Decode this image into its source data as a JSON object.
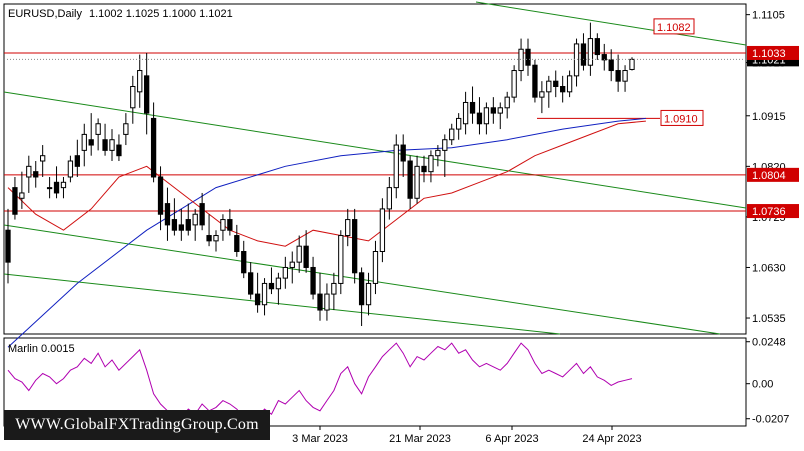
{
  "header": {
    "symbol": "EURUSD,Daily",
    "ohlc": "1.1002 1.1025 1.1000 1.1021"
  },
  "price_axis": {
    "ticks": [
      "1.1105",
      "1.1015",
      "1.0915",
      "1.0820",
      "1.0725",
      "1.0630",
      "1.0535"
    ]
  },
  "indicator": {
    "name": "Marlin 0.0015",
    "ticks": [
      "0.0248",
      "0.00",
      "-0.0207"
    ],
    "color": "#b000b0"
  },
  "date_axis": {
    "labels": [
      "3 Mar 2023",
      "21 Mar 2023",
      "6 Apr 2023",
      "24 Apr 2023"
    ]
  },
  "levels": [
    {
      "value": "1.1082",
      "price": 1.1082,
      "color": "#d00000",
      "style": "text-red"
    },
    {
      "value": "1.1033",
      "price": 1.1033,
      "color": "#d00000",
      "style": "filled"
    },
    {
      "value": "1.0910",
      "price": 1.091,
      "color": "#d00000",
      "style": "text-red"
    },
    {
      "value": "1.0804",
      "price": 1.0804,
      "color": "#d00000",
      "style": "filled"
    },
    {
      "value": "1.0736",
      "price": 1.0736,
      "color": "#d00000",
      "style": "filled"
    }
  ],
  "current_price": {
    "value": "1.1021",
    "price": 1.1021
  },
  "watermark": "WWW.GlobalFXTradingGroup.Com",
  "chart_data": {
    "type": "candlestick",
    "title": "EURUSD,Daily",
    "ylim": [
      1.0505,
      1.1125
    ],
    "indicator_ylim": [
      -0.025,
      0.027
    ],
    "candles": [
      [
        1.07,
        1.074,
        1.06,
        1.064
      ],
      [
        1.078,
        1.08,
        1.072,
        1.073
      ],
      [
        1.076,
        1.081,
        1.074,
        1.077
      ],
      [
        1.08,
        1.084,
        1.077,
        1.082
      ],
      [
        1.081,
        1.083,
        1.078,
        1.08
      ],
      [
        1.083,
        1.086,
        1.08,
        1.084
      ],
      [
        1.078,
        1.08,
        1.076,
        1.078
      ],
      [
        1.079,
        1.082,
        1.076,
        1.077
      ],
      [
        1.078,
        1.08,
        1.076,
        1.079
      ],
      [
        1.08,
        1.084,
        1.079,
        1.083
      ],
      [
        1.084,
        1.087,
        1.08,
        1.082
      ],
      [
        1.085,
        1.09,
        1.082,
        1.088
      ],
      [
        1.087,
        1.092,
        1.084,
        1.086
      ],
      [
        1.088,
        1.091,
        1.085,
        1.09
      ],
      [
        1.087,
        1.09,
        1.084,
        1.085
      ],
      [
        1.085,
        1.089,
        1.083,
        1.087
      ],
      [
        1.086,
        1.088,
        1.083,
        1.084
      ],
      [
        1.088,
        1.092,
        1.086,
        1.09
      ],
      [
        1.093,
        1.099,
        1.09,
        1.097
      ],
      [
        1.096,
        1.103,
        1.093,
        1.1
      ],
      [
        1.099,
        1.1033,
        1.088,
        1.092
      ],
      [
        1.091,
        1.094,
        1.079,
        1.08
      ],
      [
        1.08,
        1.082,
        1.07,
        1.073
      ],
      [
        1.075,
        1.078,
        1.068,
        1.071
      ],
      [
        1.072,
        1.076,
        1.069,
        1.07
      ],
      [
        1.071,
        1.074,
        1.068,
        1.07
      ],
      [
        1.072,
        1.075,
        1.069,
        1.07
      ],
      [
        1.071,
        1.074,
        1.068,
        1.073
      ],
      [
        1.075,
        1.077,
        1.07,
        1.071
      ],
      [
        1.069,
        1.073,
        1.067,
        1.068
      ],
      [
        1.068,
        1.07,
        1.066,
        1.069
      ],
      [
        1.07,
        1.073,
        1.068,
        1.072
      ],
      [
        1.072,
        1.074,
        1.069,
        1.07
      ],
      [
        1.069,
        1.071,
        1.065,
        1.066
      ],
      [
        1.066,
        1.068,
        1.061,
        1.062
      ],
      [
        1.062,
        1.064,
        1.057,
        1.058
      ],
      [
        1.058,
        1.062,
        1.0545,
        1.056
      ],
      [
        1.056,
        1.061,
        1.054,
        1.06
      ],
      [
        1.06,
        1.063,
        1.058,
        1.059
      ],
      [
        1.059,
        1.062,
        1.056,
        1.061
      ],
      [
        1.061,
        1.065,
        1.059,
        1.063
      ],
      [
        1.063,
        1.066,
        1.06,
        1.064
      ],
      [
        1.064,
        1.069,
        1.062,
        1.067
      ],
      [
        1.067,
        1.07,
        1.062,
        1.063
      ],
      [
        1.063,
        1.065,
        1.057,
        1.058
      ],
      [
        1.058,
        1.062,
        1.053,
        1.055
      ],
      [
        1.055,
        1.06,
        1.053,
        1.058
      ],
      [
        1.058,
        1.062,
        1.055,
        1.06
      ],
      [
        1.06,
        1.07,
        1.058,
        1.069
      ],
      [
        1.069,
        1.074,
        1.067,
        1.072
      ],
      [
        1.072,
        1.074,
        1.06,
        1.062
      ],
      [
        1.062,
        1.063,
        1.052,
        1.056
      ],
      [
        1.056,
        1.062,
        1.054,
        1.06
      ],
      [
        1.06,
        1.068,
        1.058,
        1.066
      ],
      [
        1.066,
        1.076,
        1.064,
        1.074
      ],
      [
        1.074,
        1.08,
        1.072,
        1.078
      ],
      [
        1.078,
        1.088,
        1.076,
        1.086
      ],
      [
        1.086,
        1.088,
        1.08,
        1.083
      ],
      [
        1.083,
        1.084,
        1.074,
        1.076
      ],
      [
        1.076,
        1.084,
        1.075,
        1.082
      ],
      [
        1.082,
        1.084,
        1.079,
        1.081
      ],
      [
        1.081,
        1.085,
        1.079,
        1.084
      ],
      [
        1.084,
        1.086,
        1.082,
        1.085
      ],
      [
        1.085,
        1.088,
        1.08,
        1.087
      ],
      [
        1.087,
        1.09,
        1.086,
        1.089
      ],
      [
        1.089,
        1.092,
        1.087,
        1.091
      ],
      [
        1.09,
        1.096,
        1.088,
        1.094
      ],
      [
        1.094,
        1.097,
        1.09,
        1.092
      ],
      [
        1.092,
        1.095,
        1.088,
        1.09
      ],
      [
        1.09,
        1.094,
        1.088,
        1.093
      ],
      [
        1.093,
        1.095,
        1.09,
        1.092
      ],
      [
        1.092,
        1.094,
        1.089,
        1.093
      ],
      [
        1.093,
        1.096,
        1.091,
        1.095
      ],
      [
        1.095,
        1.101,
        1.094,
        1.1
      ],
      [
        1.1,
        1.106,
        1.098,
        1.104
      ],
      [
        1.104,
        1.106,
        1.099,
        1.101
      ],
      [
        1.101,
        1.102,
        1.094,
        1.095
      ],
      [
        1.095,
        1.098,
        1.092,
        1.096
      ],
      [
        1.096,
        1.099,
        1.093,
        1.098
      ],
      [
        1.098,
        1.1,
        1.095,
        1.097
      ],
      [
        1.097,
        1.099,
        1.094,
        1.096
      ],
      [
        1.096,
        1.1,
        1.095,
        1.099
      ],
      [
        1.099,
        1.106,
        1.097,
        1.105
      ],
      [
        1.105,
        1.107,
        1.1,
        1.101
      ],
      [
        1.101,
        1.109,
        1.099,
        1.106
      ],
      [
        1.106,
        1.107,
        1.102,
        1.103
      ],
      [
        1.103,
        1.105,
        1.1,
        1.102
      ],
      [
        1.102,
        1.104,
        1.098,
        1.1
      ],
      [
        1.1,
        1.103,
        1.096,
        1.098
      ],
      [
        1.098,
        1.101,
        1.096,
        1.1
      ],
      [
        1.1002,
        1.1025,
        1.1,
        1.1021
      ]
    ],
    "ma_blue": [
      [
        0,
        1.048
      ],
      [
        10,
        1.06
      ],
      [
        20,
        1.07
      ],
      [
        30,
        1.078
      ],
      [
        40,
        1.082
      ],
      [
        48,
        1.084
      ],
      [
        56,
        1.085
      ],
      [
        64,
        1.0855
      ],
      [
        72,
        1.087
      ],
      [
        80,
        1.089
      ],
      [
        88,
        1.0905
      ],
      [
        92,
        1.091
      ]
    ],
    "ma_red": [
      [
        0,
        1.078
      ],
      [
        4,
        1.073
      ],
      [
        8,
        1.07
      ],
      [
        12,
        1.074
      ],
      [
        16,
        1.08
      ],
      [
        20,
        1.082
      ],
      [
        24,
        1.078
      ],
      [
        28,
        1.074
      ],
      [
        32,
        1.07
      ],
      [
        36,
        1.068
      ],
      [
        40,
        1.067
      ],
      [
        44,
        1.07
      ],
      [
        48,
        1.069
      ],
      [
        52,
        1.068
      ],
      [
        56,
        1.072
      ],
      [
        60,
        1.076
      ],
      [
        64,
        1.077
      ],
      [
        68,
        1.079
      ],
      [
        72,
        1.081
      ],
      [
        76,
        1.084
      ],
      [
        80,
        1.086
      ],
      [
        84,
        1.088
      ],
      [
        88,
        1.09
      ],
      [
        92,
        1.0905
      ]
    ],
    "marlin": [
      0.008,
      0.003,
      0.001,
      -0.004,
      0.002,
      0.006,
      0.004,
      0.0,
      0.003,
      0.008,
      0.01,
      0.015,
      0.012,
      0.018,
      0.01,
      0.014,
      0.008,
      0.012,
      0.016,
      0.02,
      0.008,
      -0.006,
      -0.012,
      -0.016,
      -0.018,
      -0.02,
      -0.015,
      -0.018,
      -0.012,
      -0.016,
      -0.014,
      -0.01,
      -0.012,
      -0.015,
      -0.02,
      -0.022,
      -0.02,
      -0.015,
      -0.018,
      -0.01,
      -0.012,
      -0.008,
      -0.004,
      -0.01,
      -0.014,
      -0.016,
      -0.01,
      -0.004,
      0.006,
      0.01,
      0.0,
      -0.006,
      0.004,
      0.01,
      0.016,
      0.02,
      0.024,
      0.018,
      0.01,
      0.016,
      0.014,
      0.018,
      0.022,
      0.02,
      0.024,
      0.018,
      0.02,
      0.014,
      0.01,
      0.012,
      0.01,
      0.008,
      0.012,
      0.018,
      0.024,
      0.02,
      0.012,
      0.006,
      0.008,
      0.006,
      0.004,
      0.008,
      0.012,
      0.006,
      0.01,
      0.004,
      0.002,
      -0.001,
      0.001,
      0.002,
      0.003
    ]
  }
}
